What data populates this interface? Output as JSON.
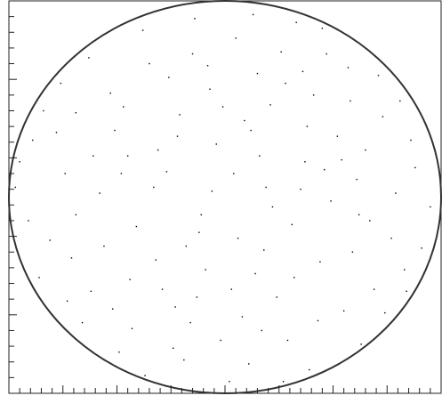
{
  "chart_data": {
    "type": "scatter",
    "series": [
      {
        "color": "#000000",
        "x": [
          0.12,
          -0.45,
          0.67,
          -0.23,
          0.05,
          -0.78,
          0.41,
          -0.11,
          0.88,
          -0.62,
          0.29,
          -0.35,
          0.73,
          -0.91,
          0.18,
          -0.07,
          0.55,
          -0.49,
          0.33,
          -0.84,
          0.02,
          0.61,
          -0.27,
          0.44,
          -0.58,
          0.15,
          -0.71,
          0.83,
          -0.19,
          0.37,
          -0.04,
          0.71,
          -0.53,
          0.24,
          -0.32,
          0.95,
          -0.95,
          0.08,
          -0.14,
          0.52,
          -0.66,
          0.19,
          -0.41,
          0.63,
          -0.21,
          0.47,
          -0.86,
          0.31,
          -0.09,
          0.77,
          -0.38,
          0.11,
          -0.74,
          0.58,
          -0.16,
          0.39,
          -0.51,
          0.21,
          -0.29,
          0.86,
          -0.63,
          0.04,
          0.49,
          -0.81,
          0.26,
          -0.12,
          0.69,
          -0.43,
          0.14,
          -0.26,
          0.57,
          -0.69,
          0.35,
          -0.02,
          0.79,
          -0.47,
          0.09,
          -0.37,
          0.43,
          -0.89,
          0.22,
          -0.15,
          0.65,
          -0.56,
          0.32,
          -0.06,
          0.45,
          -0.76,
          0.91,
          -0.31,
          0.16,
          -0.44,
          0.74,
          -0.18,
          0.28,
          -0.61,
          0.03,
          0.59,
          -0.24,
          0.38,
          -0.52,
          0.13,
          -0.97,
          0.81,
          -0.33,
          0.06,
          0.46,
          -0.08,
          0.27,
          -0.69,
          0.62,
          -0.13,
          0.36,
          -0.48,
          0.17,
          -0.73,
          0.54,
          -0.22,
          0.84,
          -0.01
        ],
        "values": [
          0.34,
          0.21,
          -0.12,
          -0.56,
          0.81,
          0.33,
          0.52,
          -0.09,
          0.15,
          -0.48,
          -0.73,
          0.68,
          0.41,
          -0.12,
          -0.27,
          0.55,
          -0.58,
          -0.79,
          0.89,
          0.44,
          -0.94,
          0.09,
          0.13,
          -0.33,
          0.02,
          0.63,
          -0.31,
          -0.37,
          -0.83,
          0.18,
          0.27,
          0.62,
          0.53,
          -0.51,
          -0.32,
          -0.05,
          0.18,
          -0.61,
          0.91,
          0.31,
          -0.64,
          0.05,
          -0.15,
          -0.75,
          0.42,
          0.73,
          -0.41,
          -0.14,
          -0.37,
          -0.21,
          0.85,
          -0.85,
          0.12,
          0.49,
          -0.64,
          -0.88,
          0.34,
          0.47,
          -0.47,
          0.29,
          0.71,
          0.12,
          -0.02,
          -0.22,
          0.74,
          -0.18,
          -0.47,
          -0.67,
          -0.39,
          0.61,
          0.66,
          -0.09,
          0.04,
          -0.73,
          0.02,
          0.46,
          0.39,
          -0.91,
          -0.63,
          0.29,
          -0.05,
          0.73,
          0.24,
          -0.25,
          -0.41,
          0.03,
          0.86,
          0.58,
          -0.26,
          0.24,
          0.21,
          -0.42,
          -0.59,
          -0.25,
          0.58,
          0.21,
          -0.47,
          -0.28,
          -0.77,
          0.36,
          -0.57,
          0.93,
          0.05,
          0.49,
          0.05,
          -0.21,
          0.14,
          0.67,
          -0.94,
          0.43,
          -0.09,
          -0.51,
          0.64,
          0.12,
          -0.68,
          -0.53,
          0.19,
          0.31,
          -0.48,
          0.46
        ]
      }
    ],
    "xlim": [
      -1,
      1
    ],
    "ylim": [
      -1,
      1
    ],
    "xticks": [
      -1,
      -0.95,
      -0.9,
      -0.85,
      -0.8,
      -0.75,
      -0.7,
      -0.65,
      -0.6,
      -0.55,
      -0.5,
      -0.45,
      -0.4,
      -0.35,
      -0.3,
      -0.25,
      -0.2,
      -0.15,
      -0.1,
      -0.05,
      0,
      0.05,
      0.1,
      0.15,
      0.2,
      0.25,
      0.3,
      0.35,
      0.4,
      0.45,
      0.5,
      0.55,
      0.6,
      0.65,
      0.7,
      0.75,
      0.8,
      0.85,
      0.9,
      0.95,
      1
    ],
    "yticks": [
      -1,
      -0.92,
      -0.84,
      -0.76,
      -0.68,
      -0.6,
      -0.52,
      -0.44,
      -0.36,
      -0.28,
      -0.2,
      -0.12,
      -0.04,
      0.04,
      0.12,
      0.2,
      0.28,
      0.36,
      0.44,
      0.52,
      0.6,
      0.68,
      0.76,
      0.84,
      0.92,
      1
    ],
    "grid": false
  }
}
